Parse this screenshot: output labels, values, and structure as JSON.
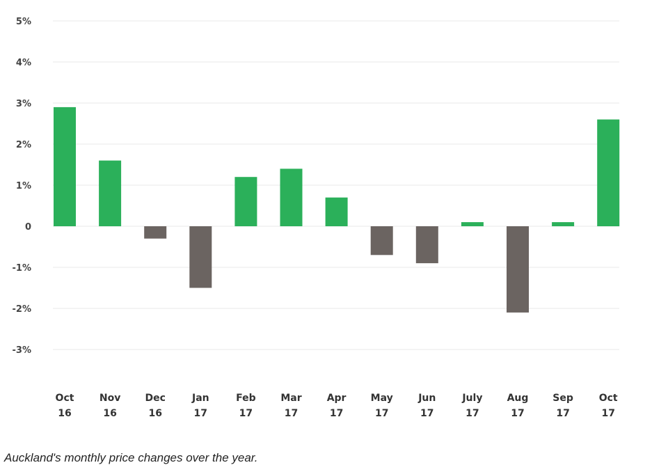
{
  "chart_data": {
    "type": "bar",
    "title": "",
    "xlabel": "",
    "ylabel": "",
    "categories": [
      [
        "Oct",
        "16"
      ],
      [
        "Nov",
        "16"
      ],
      [
        "Dec",
        "16"
      ],
      [
        "Jan",
        "17"
      ],
      [
        "Feb",
        "17"
      ],
      [
        "Mar",
        "17"
      ],
      [
        "Apr",
        "17"
      ],
      [
        "May",
        "17"
      ],
      [
        "Jun",
        "17"
      ],
      [
        "July",
        "17"
      ],
      [
        "Aug",
        "17"
      ],
      [
        "Sep",
        "17"
      ],
      [
        "Oct",
        "17"
      ]
    ],
    "values": [
      2.9,
      1.6,
      -0.3,
      -1.5,
      1.2,
      1.4,
      0.7,
      -0.7,
      -0.9,
      0.1,
      -2.1,
      0.1,
      2.6
    ],
    "unit": "%",
    "ylim": [
      -4,
      5
    ],
    "yticks": [
      5,
      4,
      3,
      2,
      1,
      0,
      -1,
      -2,
      -3
    ],
    "ytick_labels": [
      "5%",
      "4%",
      "3%",
      "2%",
      "1%",
      "0",
      "-1%",
      "-2%",
      "-3%"
    ],
    "grid": true,
    "colors": {
      "positive": "#2bb05a",
      "negative": "#6b6461",
      "grid": "#f1f1f1"
    }
  },
  "caption": "Auckland's monthly price changes over the year."
}
